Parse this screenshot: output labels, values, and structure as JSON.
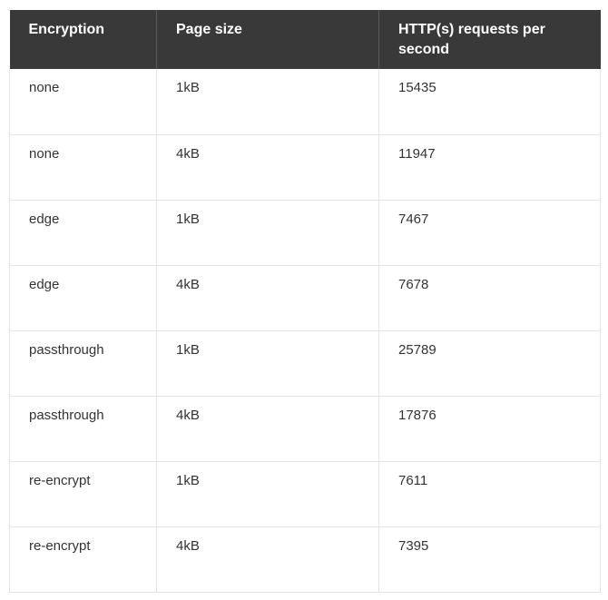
{
  "table": {
    "headers": [
      "Encryption",
      "Page size",
      "HTTP(s) requests per second"
    ],
    "rows": [
      [
        "none",
        "1kB",
        "15435"
      ],
      [
        "none",
        "4kB",
        "11947"
      ],
      [
        "edge",
        "1kB",
        "7467"
      ],
      [
        "edge",
        "4kB",
        "7678"
      ],
      [
        "passthrough",
        "1kB",
        "25789"
      ],
      [
        "passthrough",
        "4kB",
        "17876"
      ],
      [
        "re-encrypt",
        "1kB",
        "7611"
      ],
      [
        "re-encrypt",
        "4kB",
        "7395"
      ]
    ]
  }
}
